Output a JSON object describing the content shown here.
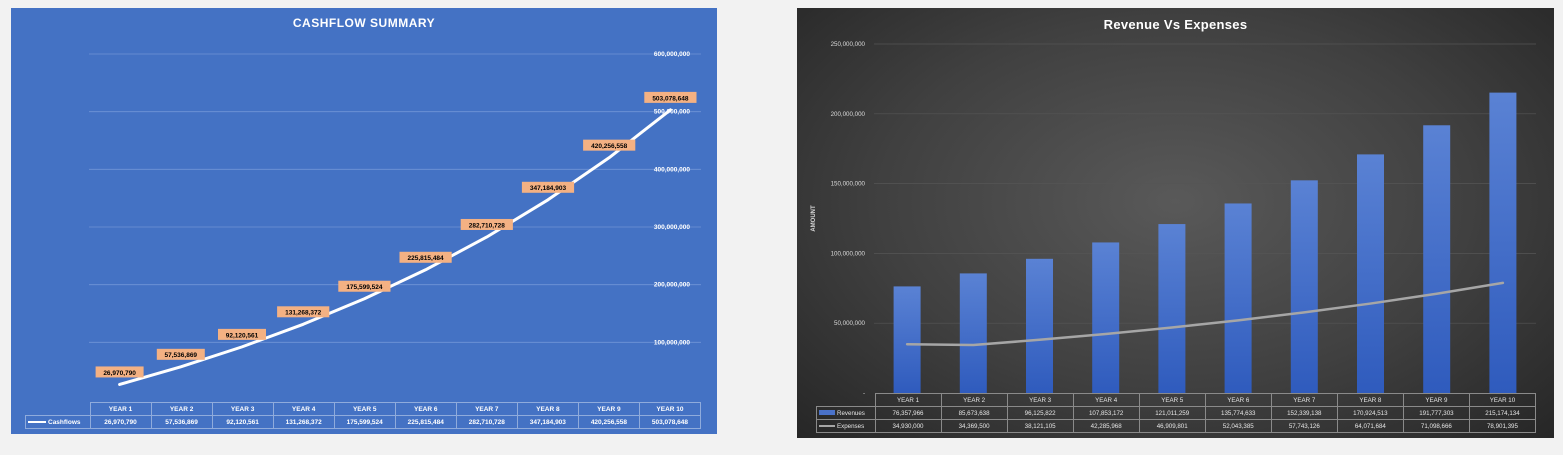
{
  "chart_data": [
    {
      "type": "line",
      "title": "CASHFLOW SUMMARY",
      "categories": [
        "YEAR 1",
        "YEAR 2",
        "YEAR 3",
        "YEAR 4",
        "YEAR 5",
        "YEAR 6",
        "YEAR 7",
        "YEAR 8",
        "YEAR 9",
        "YEAR 10"
      ],
      "series": [
        {
          "name": "Cashflows",
          "values": [
            26970790,
            57536869,
            92120561,
            131268372,
            175599524,
            225815484,
            282710728,
            347184903,
            420256558,
            503078648
          ],
          "labels": [
            "26,970,790",
            "57,536,869",
            "92,120,561",
            "131,268,372",
            "175,599,524",
            "225,815,484",
            "282,710,728",
            "347,184,903",
            "420,256,558",
            "503,078,648"
          ]
        }
      ],
      "y_ticks": [
        "100,000,000",
        "200,000,000",
        "300,000,000",
        "400,000,000",
        "500,000,000",
        "600,000,000"
      ],
      "y_tick_values": [
        100000000,
        200000000,
        300000000,
        400000000,
        500000000,
        600000000
      ],
      "ylim": [
        0,
        600000000
      ],
      "y_axis_side": "right",
      "grid": true,
      "data_table": true,
      "colors": {
        "background": "#4472c4",
        "line": "#ffffff",
        "label_fill": "#f4b183",
        "grid": "#7094d6"
      }
    },
    {
      "type": "bar",
      "title": "Revenue Vs Expenses",
      "ylabel": "AMOUNT",
      "categories": [
        "YEAR 1",
        "YEAR 2",
        "YEAR 3",
        "YEAR 4",
        "YEAR 5",
        "YEAR 6",
        "YEAR 7",
        "YEAR 8",
        "YEAR 9",
        "YEAR 10"
      ],
      "series": [
        {
          "name": "Revenues",
          "type": "bar",
          "values": [
            76357966,
            85673638,
            96125822,
            107853172,
            121011259,
            135774633,
            152339138,
            170924513,
            191777303,
            215174134
          ],
          "labels": [
            "76,357,966",
            "85,673,638",
            "96,125,822",
            "107,853,172",
            "121,011,259",
            "135,774,633",
            "152,339,138",
            "170,924,513",
            "191,777,303",
            "215,174,134"
          ]
        },
        {
          "name": "Expenses",
          "type": "line",
          "values": [
            34930000,
            34369500,
            38121105,
            42285968,
            46909801,
            52043385,
            57743126,
            64071684,
            71098666,
            78901395
          ],
          "labels": [
            "34,930,000",
            "34,369,500",
            "38,121,105",
            "42,285,968",
            "46,909,801",
            "52,043,385",
            "57,743,126",
            "64,071,684",
            "71,098,666",
            "78,901,395"
          ]
        }
      ],
      "y_ticks": [
        "-",
        "50,000,000",
        "100,000,000",
        "150,000,000",
        "200,000,000",
        "250,000,000"
      ],
      "y_tick_values": [
        0,
        50000000,
        100000000,
        150000000,
        200000000,
        250000000
      ],
      "ylim": [
        0,
        250000000
      ],
      "grid": true,
      "data_table": true,
      "colors": {
        "bar": "#4a72c9",
        "line": "#a6a6a6",
        "grid": "#555555"
      }
    }
  ]
}
